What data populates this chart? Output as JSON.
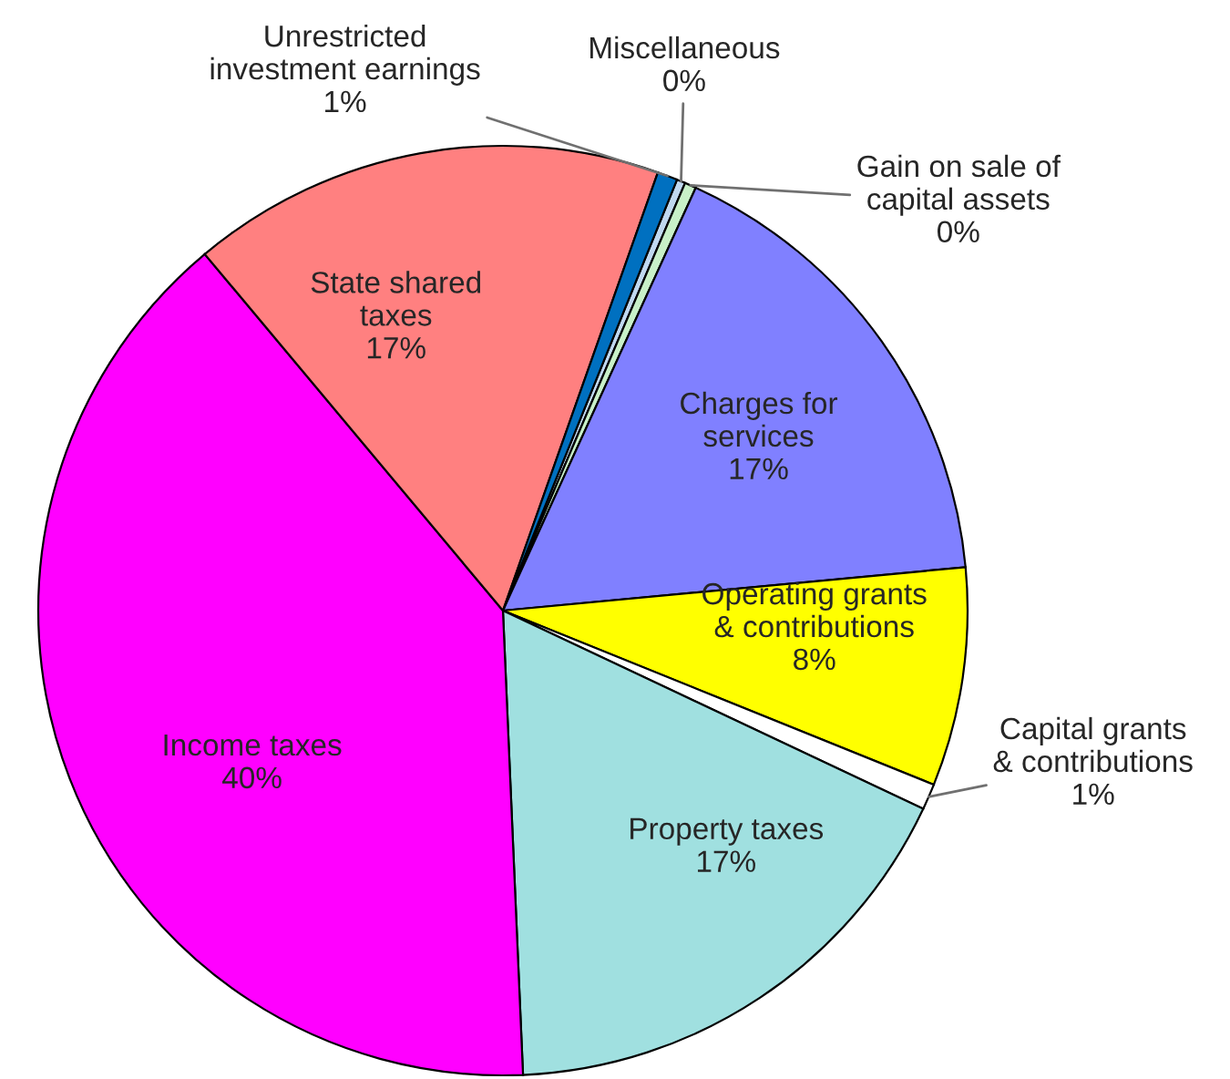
{
  "chart_data": {
    "type": "pie",
    "categories": [
      "Miscellaneous",
      "Gain on sale of\ncapital assets",
      "Charges for\nservices",
      "Operating grants\n& contributions",
      "Capital grants\n& contributions",
      "Property taxes",
      "Income taxes",
      "State shared\ntaxes",
      "Unrestricted\ninvestment earnings"
    ],
    "values": [
      0.3,
      0.4,
      16.7,
      7.6,
      0.9,
      17.3,
      39.6,
      16.5,
      0.7
    ],
    "value_labels": [
      "0%",
      "0%",
      "17%",
      "8%",
      "1%",
      "17%",
      "40%",
      "17%",
      "1%"
    ],
    "colors": [
      "#c0d8f0",
      "#c8f0c8",
      "#8080ff",
      "#ffff00",
      "#ffffff",
      "#a0e0e0",
      "#ff00ff",
      "#ff8080",
      "#0070c0"
    ]
  }
}
